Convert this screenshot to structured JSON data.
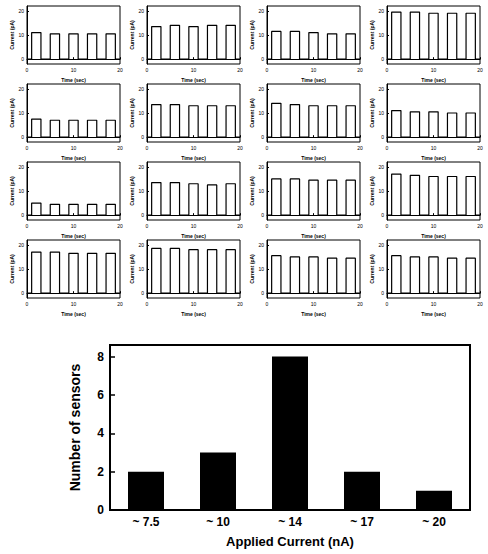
{
  "chart_data": [
    {
      "type": "line",
      "xlabel": "Time (sec)",
      "ylabel": "Current (pA)",
      "color": "#000000",
      "xlim": [
        0,
        20
      ],
      "xticks": [
        0,
        10,
        20
      ],
      "ylim": [
        -2,
        22
      ],
      "yticks": [
        0,
        10,
        20
      ],
      "x": [
        0,
        1,
        1,
        3,
        3,
        5,
        5,
        7,
        7,
        9,
        9,
        11,
        11,
        13,
        13,
        15,
        15,
        17,
        17,
        19,
        19,
        20
      ],
      "values": [
        0,
        0,
        11,
        11,
        0,
        0,
        10.5,
        10.5,
        0,
        0,
        10.5,
        10.5,
        0,
        0,
        10.5,
        10.5,
        0,
        0,
        10.5,
        10.5,
        0,
        0
      ]
    },
    {
      "type": "line",
      "xlabel": "Time (sec)",
      "ylabel": "Current (pA)",
      "color": "#000000",
      "xlim": [
        0,
        20
      ],
      "xticks": [
        0,
        10,
        20
      ],
      "ylim": [
        -2,
        22
      ],
      "yticks": [
        0,
        10,
        20
      ],
      "x": [
        0,
        1,
        1,
        3,
        3,
        5,
        5,
        7,
        7,
        9,
        9,
        11,
        11,
        13,
        13,
        15,
        15,
        17,
        17,
        19,
        19,
        20
      ],
      "values": [
        0,
        0,
        13.5,
        13.5,
        0,
        0,
        14,
        14,
        0,
        0,
        13.5,
        13.5,
        0,
        0,
        14,
        14,
        0,
        0,
        14,
        14,
        0,
        0
      ]
    },
    {
      "type": "line",
      "xlabel": "Time (sec)",
      "ylabel": "Current (pA)",
      "color": "#000000",
      "xlim": [
        0,
        20
      ],
      "xticks": [
        0,
        10,
        20
      ],
      "ylim": [
        -2,
        22
      ],
      "yticks": [
        0,
        10,
        20
      ],
      "x": [
        0,
        1,
        1,
        3,
        3,
        5,
        5,
        7,
        7,
        9,
        9,
        11,
        11,
        13,
        13,
        15,
        15,
        17,
        17,
        19,
        19,
        20
      ],
      "values": [
        0,
        0,
        11.5,
        11.5,
        0,
        0,
        11.5,
        11.5,
        0,
        0,
        11,
        11,
        0,
        0,
        10.5,
        10.5,
        0,
        0,
        10.5,
        10.5,
        0,
        0
      ]
    },
    {
      "type": "line",
      "xlabel": "Time (sec)",
      "ylabel": "Current (pA)",
      "color": "#000000",
      "xlim": [
        0,
        20
      ],
      "xticks": [
        0,
        10,
        20
      ],
      "ylim": [
        -2,
        22
      ],
      "yticks": [
        0,
        10,
        20
      ],
      "x": [
        0,
        1,
        1,
        3,
        3,
        5,
        5,
        7,
        7,
        9,
        9,
        11,
        11,
        13,
        13,
        15,
        15,
        17,
        17,
        19,
        19,
        20
      ],
      "values": [
        0,
        0,
        19.5,
        19.5,
        0,
        0,
        19.5,
        19.5,
        0,
        0,
        19,
        19,
        0,
        0,
        19,
        19,
        0,
        0,
        19,
        19,
        0,
        0
      ]
    },
    {
      "type": "line",
      "xlabel": "Time (sec)",
      "ylabel": "Current (pA)",
      "color": "#000000",
      "xlim": [
        0,
        20
      ],
      "xticks": [
        0,
        10,
        20
      ],
      "ylim": [
        -2,
        22
      ],
      "yticks": [
        0,
        10,
        20
      ],
      "x": [
        0,
        1,
        1,
        3,
        3,
        5,
        5,
        7,
        7,
        9,
        9,
        11,
        11,
        13,
        13,
        15,
        15,
        17,
        17,
        19,
        19,
        20
      ],
      "values": [
        0,
        0,
        7.5,
        7.5,
        0,
        0,
        7,
        7,
        0,
        0,
        7,
        7,
        0,
        0,
        7,
        7,
        0,
        0,
        7,
        7,
        0,
        0
      ]
    },
    {
      "type": "line",
      "xlabel": "Time (sec)",
      "ylabel": "Current (pA)",
      "color": "#000000",
      "xlim": [
        0,
        20
      ],
      "xticks": [
        0,
        10,
        20
      ],
      "ylim": [
        -2,
        22
      ],
      "yticks": [
        0,
        10,
        20
      ],
      "x": [
        0,
        1,
        1,
        3,
        3,
        5,
        5,
        7,
        7,
        9,
        9,
        11,
        11,
        13,
        13,
        15,
        15,
        17,
        17,
        19,
        19,
        20
      ],
      "values": [
        0,
        0,
        13.5,
        13.5,
        0,
        0,
        13.5,
        13.5,
        0,
        0,
        13,
        13,
        0,
        0,
        13,
        13,
        0,
        0,
        13,
        13,
        0,
        0
      ]
    },
    {
      "type": "line",
      "xlabel": "Time (sec)",
      "ylabel": "Current (pA)",
      "color": "#000000",
      "xlim": [
        0,
        20
      ],
      "xticks": [
        0,
        10,
        20
      ],
      "ylim": [
        -2,
        22
      ],
      "yticks": [
        0,
        10,
        20
      ],
      "x": [
        0,
        1,
        1,
        3,
        3,
        5,
        5,
        7,
        7,
        9,
        9,
        11,
        11,
        13,
        13,
        15,
        15,
        17,
        17,
        19,
        19,
        20
      ],
      "values": [
        0,
        0,
        14,
        14,
        0,
        0,
        13.5,
        13.5,
        0,
        0,
        13,
        13,
        0,
        0,
        13,
        13,
        0,
        0,
        13,
        13,
        0,
        0
      ]
    },
    {
      "type": "line",
      "xlabel": "Time (sec)",
      "ylabel": "Current (pA)",
      "color": "#000000",
      "xlim": [
        0,
        20
      ],
      "xticks": [
        0,
        10,
        20
      ],
      "ylim": [
        -2,
        22
      ],
      "yticks": [
        0,
        10,
        20
      ],
      "x": [
        0,
        1,
        1,
        3,
        3,
        5,
        5,
        7,
        7,
        9,
        9,
        11,
        11,
        13,
        13,
        15,
        15,
        17,
        17,
        19,
        19,
        20
      ],
      "values": [
        0,
        0,
        11,
        11,
        0,
        0,
        10.5,
        10.5,
        0,
        0,
        10.5,
        10.5,
        0,
        0,
        10,
        10,
        0,
        0,
        10,
        10,
        0,
        0
      ]
    },
    {
      "type": "line",
      "xlabel": "Time (sec)",
      "ylabel": "Current (pA)",
      "color": "#000000",
      "xlim": [
        0,
        20
      ],
      "xticks": [
        0,
        10,
        20
      ],
      "ylim": [
        -2,
        22
      ],
      "yticks": [
        0,
        10,
        20
      ],
      "x": [
        0,
        1,
        1,
        3,
        3,
        5,
        5,
        7,
        7,
        9,
        9,
        11,
        11,
        13,
        13,
        15,
        15,
        17,
        17,
        19,
        19,
        20
      ],
      "values": [
        0,
        0,
        5,
        5,
        0,
        0,
        4.5,
        4.5,
        0,
        0,
        4.5,
        4.5,
        0,
        0,
        4.5,
        4.5,
        0,
        0,
        4.5,
        4.5,
        0,
        0
      ]
    },
    {
      "type": "line",
      "xlabel": "Time (sec)",
      "ylabel": "Current (pA)",
      "color": "#000000",
      "xlim": [
        0,
        20
      ],
      "xticks": [
        0,
        10,
        20
      ],
      "ylim": [
        -2,
        22
      ],
      "yticks": [
        0,
        10,
        20
      ],
      "x": [
        0,
        1,
        1,
        3,
        3,
        5,
        5,
        7,
        7,
        9,
        9,
        11,
        11,
        13,
        13,
        15,
        15,
        17,
        17,
        19,
        19,
        20
      ],
      "values": [
        0,
        0,
        13.5,
        13.5,
        0,
        0,
        13.5,
        13.5,
        0,
        0,
        13,
        13,
        0,
        0,
        12.5,
        12.5,
        0,
        0,
        13,
        13,
        0,
        0
      ]
    },
    {
      "type": "line",
      "xlabel": "Time (sec)",
      "ylabel": "Current (pA)",
      "color": "#000000",
      "xlim": [
        0,
        20
      ],
      "xticks": [
        0,
        10,
        20
      ],
      "ylim": [
        -2,
        22
      ],
      "yticks": [
        0,
        10,
        20
      ],
      "x": [
        0,
        1,
        1,
        3,
        3,
        5,
        5,
        7,
        7,
        9,
        9,
        11,
        11,
        13,
        13,
        15,
        15,
        17,
        17,
        19,
        19,
        20
      ],
      "values": [
        0,
        0,
        15,
        15,
        0,
        0,
        15,
        15,
        0,
        0,
        14.5,
        14.5,
        0,
        0,
        14.5,
        14.5,
        0,
        0,
        14.5,
        14.5,
        0,
        0
      ]
    },
    {
      "type": "line",
      "xlabel": "Time (sec)",
      "ylabel": "Current (pA)",
      "color": "#000000",
      "xlim": [
        0,
        20
      ],
      "xticks": [
        0,
        10,
        20
      ],
      "ylim": [
        -2,
        22
      ],
      "yticks": [
        0,
        10,
        20
      ],
      "x": [
        0,
        1,
        1,
        3,
        3,
        5,
        5,
        7,
        7,
        9,
        9,
        11,
        11,
        13,
        13,
        15,
        15,
        17,
        17,
        19,
        19,
        20
      ],
      "values": [
        0,
        0,
        17,
        17,
        0,
        0,
        16.5,
        16.5,
        0,
        0,
        16,
        16,
        0,
        0,
        16,
        16,
        0,
        0,
        16,
        16,
        0,
        0
      ]
    },
    {
      "type": "line",
      "xlabel": "Time (sec)",
      "ylabel": "Current (pA)",
      "color": "#000000",
      "xlim": [
        0,
        20
      ],
      "xticks": [
        0,
        10,
        20
      ],
      "ylim": [
        -2,
        22
      ],
      "yticks": [
        0,
        10,
        20
      ],
      "x": [
        0,
        1,
        1,
        3,
        3,
        5,
        5,
        7,
        7,
        9,
        9,
        11,
        11,
        13,
        13,
        15,
        15,
        17,
        17,
        19,
        19,
        20
      ],
      "values": [
        0,
        0,
        17,
        17,
        0,
        0,
        17,
        17,
        0,
        0,
        16.5,
        16.5,
        0,
        0,
        16.5,
        16.5,
        0,
        0,
        16.5,
        16.5,
        0,
        0
      ]
    },
    {
      "type": "line",
      "xlabel": "Time (sec)",
      "ylabel": "Current (pA)",
      "color": "#000000",
      "xlim": [
        0,
        20
      ],
      "xticks": [
        0,
        10,
        20
      ],
      "ylim": [
        -2,
        22
      ],
      "yticks": [
        0,
        10,
        20
      ],
      "x": [
        0,
        1,
        1,
        3,
        3,
        5,
        5,
        7,
        7,
        9,
        9,
        11,
        11,
        13,
        13,
        15,
        15,
        17,
        17,
        19,
        19,
        20
      ],
      "values": [
        0,
        0,
        18.5,
        18.5,
        0,
        0,
        18.5,
        18.5,
        0,
        0,
        18,
        18,
        0,
        0,
        18,
        18,
        0,
        0,
        18,
        18,
        0,
        0
      ]
    },
    {
      "type": "line",
      "xlabel": "Time (sec)",
      "ylabel": "Current (pA)",
      "color": "#000000",
      "xlim": [
        0,
        20
      ],
      "xticks": [
        0,
        10,
        20
      ],
      "ylim": [
        -2,
        22
      ],
      "yticks": [
        0,
        10,
        20
      ],
      "x": [
        0,
        1,
        1,
        3,
        3,
        5,
        5,
        7,
        7,
        9,
        9,
        11,
        11,
        13,
        13,
        15,
        15,
        17,
        17,
        19,
        19,
        20
      ],
      "values": [
        0,
        0,
        15.5,
        15.5,
        0,
        0,
        15,
        15,
        0,
        0,
        15,
        15,
        0,
        0,
        14.5,
        14.5,
        0,
        0,
        14.5,
        14.5,
        0,
        0
      ]
    },
    {
      "type": "line",
      "xlabel": "Time (sec)",
      "ylabel": "Current (pA)",
      "color": "#000000",
      "xlim": [
        0,
        20
      ],
      "xticks": [
        0,
        10,
        20
      ],
      "ylim": [
        -2,
        22
      ],
      "yticks": [
        0,
        10,
        20
      ],
      "x": [
        0,
        1,
        1,
        3,
        3,
        5,
        5,
        7,
        7,
        9,
        9,
        11,
        11,
        13,
        13,
        15,
        15,
        17,
        17,
        19,
        19,
        20
      ],
      "values": [
        0,
        0,
        15.5,
        15.5,
        0,
        0,
        15,
        15,
        0,
        0,
        15,
        15,
        0,
        0,
        14.5,
        14.5,
        0,
        0,
        14.5,
        14.5,
        0,
        0
      ]
    },
    {
      "type": "bar",
      "xlabel": "Applied Current (nA)",
      "ylabel": "Number of sensors",
      "color": "#000000",
      "categories": [
        "~ 7.5",
        "~ 10",
        "~ 14",
        "~ 17",
        "~ 20"
      ],
      "values": [
        2,
        3,
        8,
        2,
        1
      ],
      "ylim": [
        0,
        8.6
      ],
      "yticks": [
        0,
        2,
        4,
        6,
        8
      ]
    }
  ]
}
